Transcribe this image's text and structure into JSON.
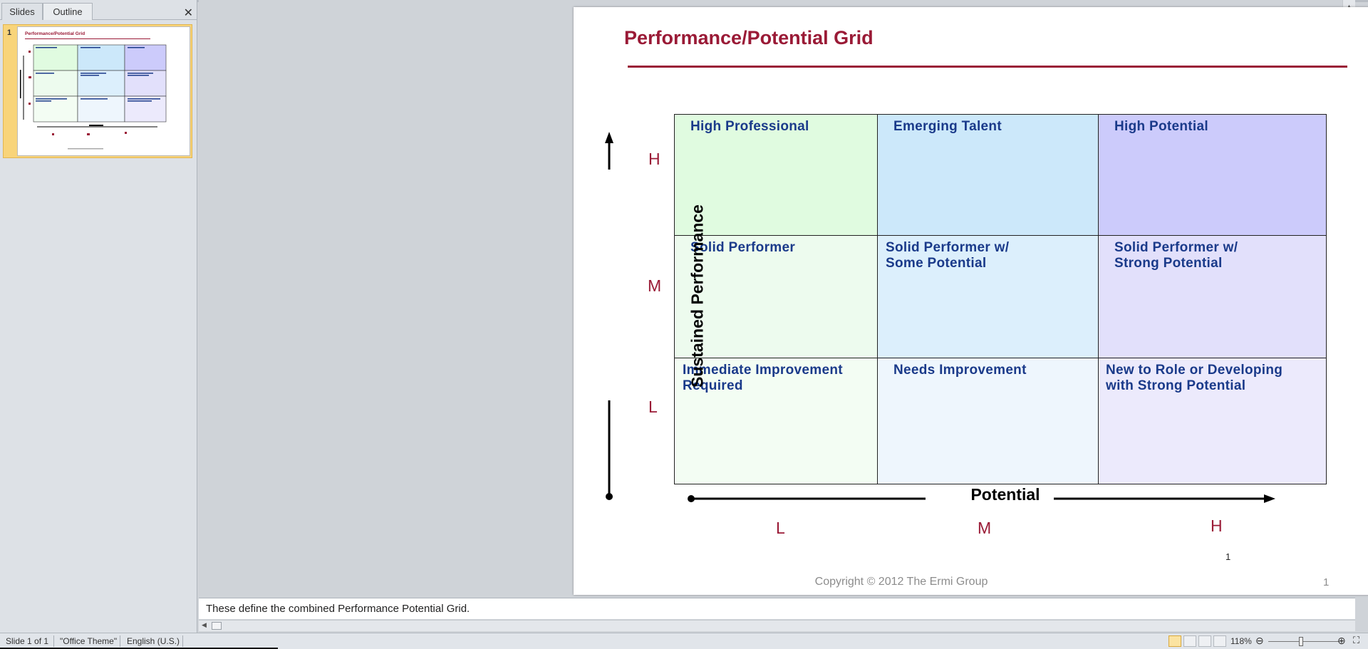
{
  "left_pane": {
    "tabs": [
      {
        "label": "Slides"
      },
      {
        "label": "Outline"
      }
    ],
    "close_glyph": "✕",
    "thumbnail_number": "1",
    "thumbnail_title": "Performance/Potential Grid"
  },
  "slide": {
    "title": "Performance/Potential Grid",
    "grid": {
      "cells": [
        "High Professional",
        "Emerging Talent",
        "High Potential",
        "Solid Performer",
        "Solid Performer w/\nSome Potential",
        "Solid Performer w/\nStrong Potential",
        "Immediate Improvement\nRequired",
        "Needs Improvement",
        "New to Role or Developing\nwith Strong Potential"
      ]
    },
    "y_axis_label": "Sustained Performance",
    "x_axis_label": "Potential",
    "row_labels": [
      "H",
      "M",
      "L"
    ],
    "col_labels": [
      "L",
      "M",
      "H"
    ],
    "small_page_number": "1",
    "footer_copyright": "Copyright © 2012 The Ermi Group",
    "footer_page_number": "1"
  },
  "notes": {
    "text": "These define the combined Performance Potential Grid."
  },
  "status_bar": {
    "slide_indicator": "Slide 1 of 1",
    "theme": "\"Office Theme\"",
    "language": "English (U.S.)",
    "zoom": "118%"
  },
  "colors": {
    "title": "#9a1a36",
    "cell_text": "#1a3a8a",
    "cell_fills": [
      "#e0fbe0",
      "#cce8fa",
      "#cccbfb",
      "#edfbee",
      "#dceffc",
      "#e2e0fb",
      "#f3fdf3",
      "#eef6fd",
      "#eceafc"
    ]
  }
}
